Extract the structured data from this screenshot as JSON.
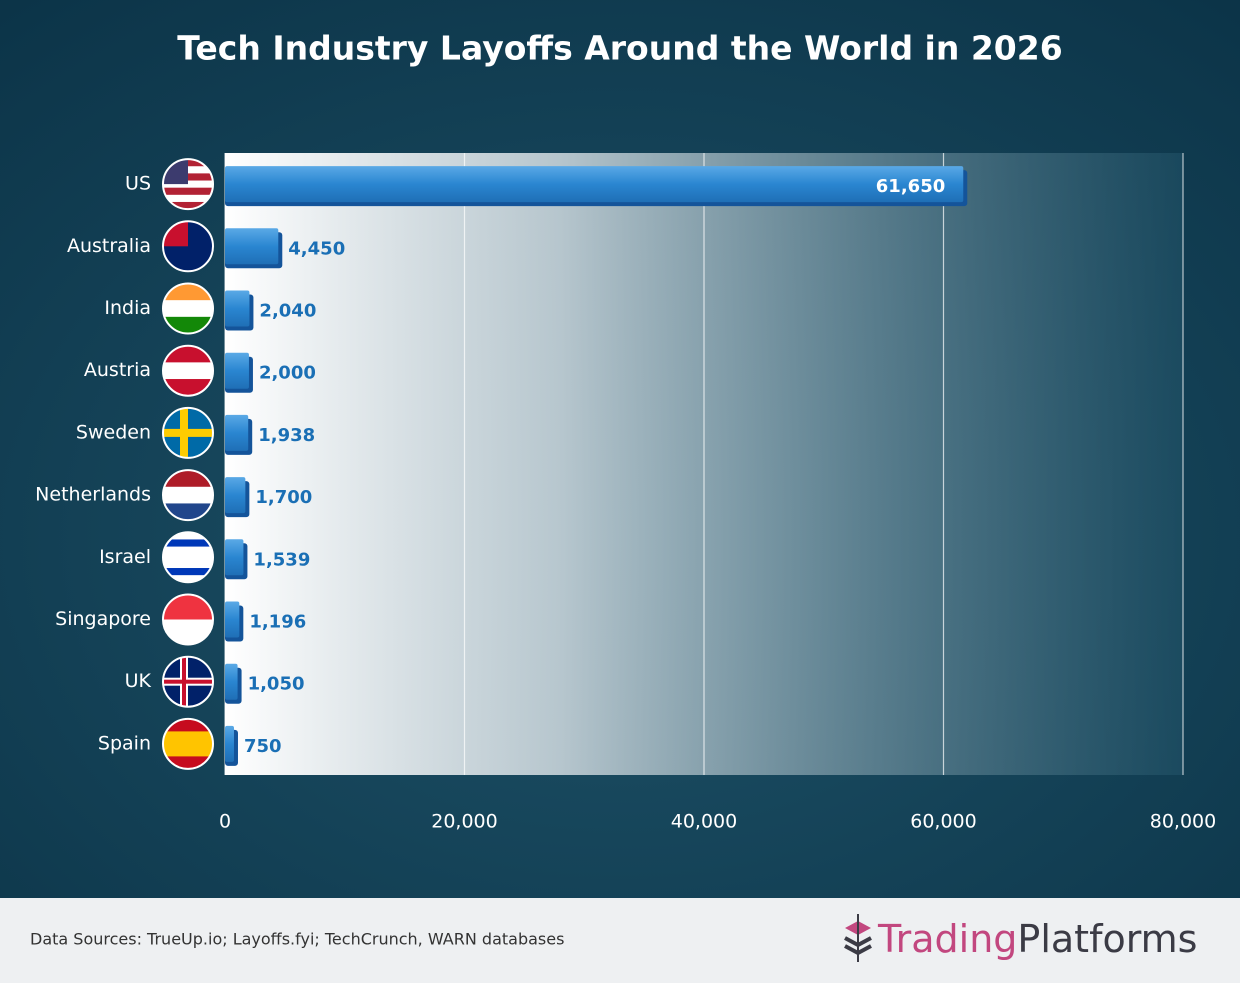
{
  "chart_data": {
    "type": "bar",
    "orientation": "horizontal",
    "title": "Tech Industry Layoffs Around the World in 2026",
    "categories": [
      "US",
      "Australia",
      "India",
      "Austria",
      "Sweden",
      "Netherlands",
      "Israel",
      "Singapore",
      "UK",
      "Spain"
    ],
    "values": [
      61650,
      4450,
      2040,
      2000,
      1938,
      1700,
      1539,
      1196,
      1050,
      750
    ],
    "value_labels": [
      "61,650",
      "4,450",
      "2,040",
      "2,000",
      "1,938",
      "1,700",
      "1,539",
      "1,196",
      "1,050",
      "750"
    ],
    "color": "#2a86d1",
    "xlim": [
      0,
      80000
    ],
    "xticks": [
      0,
      {
        "value": 20000,
        "label": "20,000"
      },
      {
        "value": 40000,
        "label": "40,000"
      },
      {
        "value": 60000,
        "label": "60,000"
      },
      {
        "value": 80000,
        "label": "80,000"
      }
    ],
    "grid": true
  },
  "footer": {
    "source": "Data Sources: TrueUp.io; Layoffs.fyi; TechCrunch, WARN databases",
    "brand_first": "Trading",
    "brand_second": "Platforms"
  }
}
